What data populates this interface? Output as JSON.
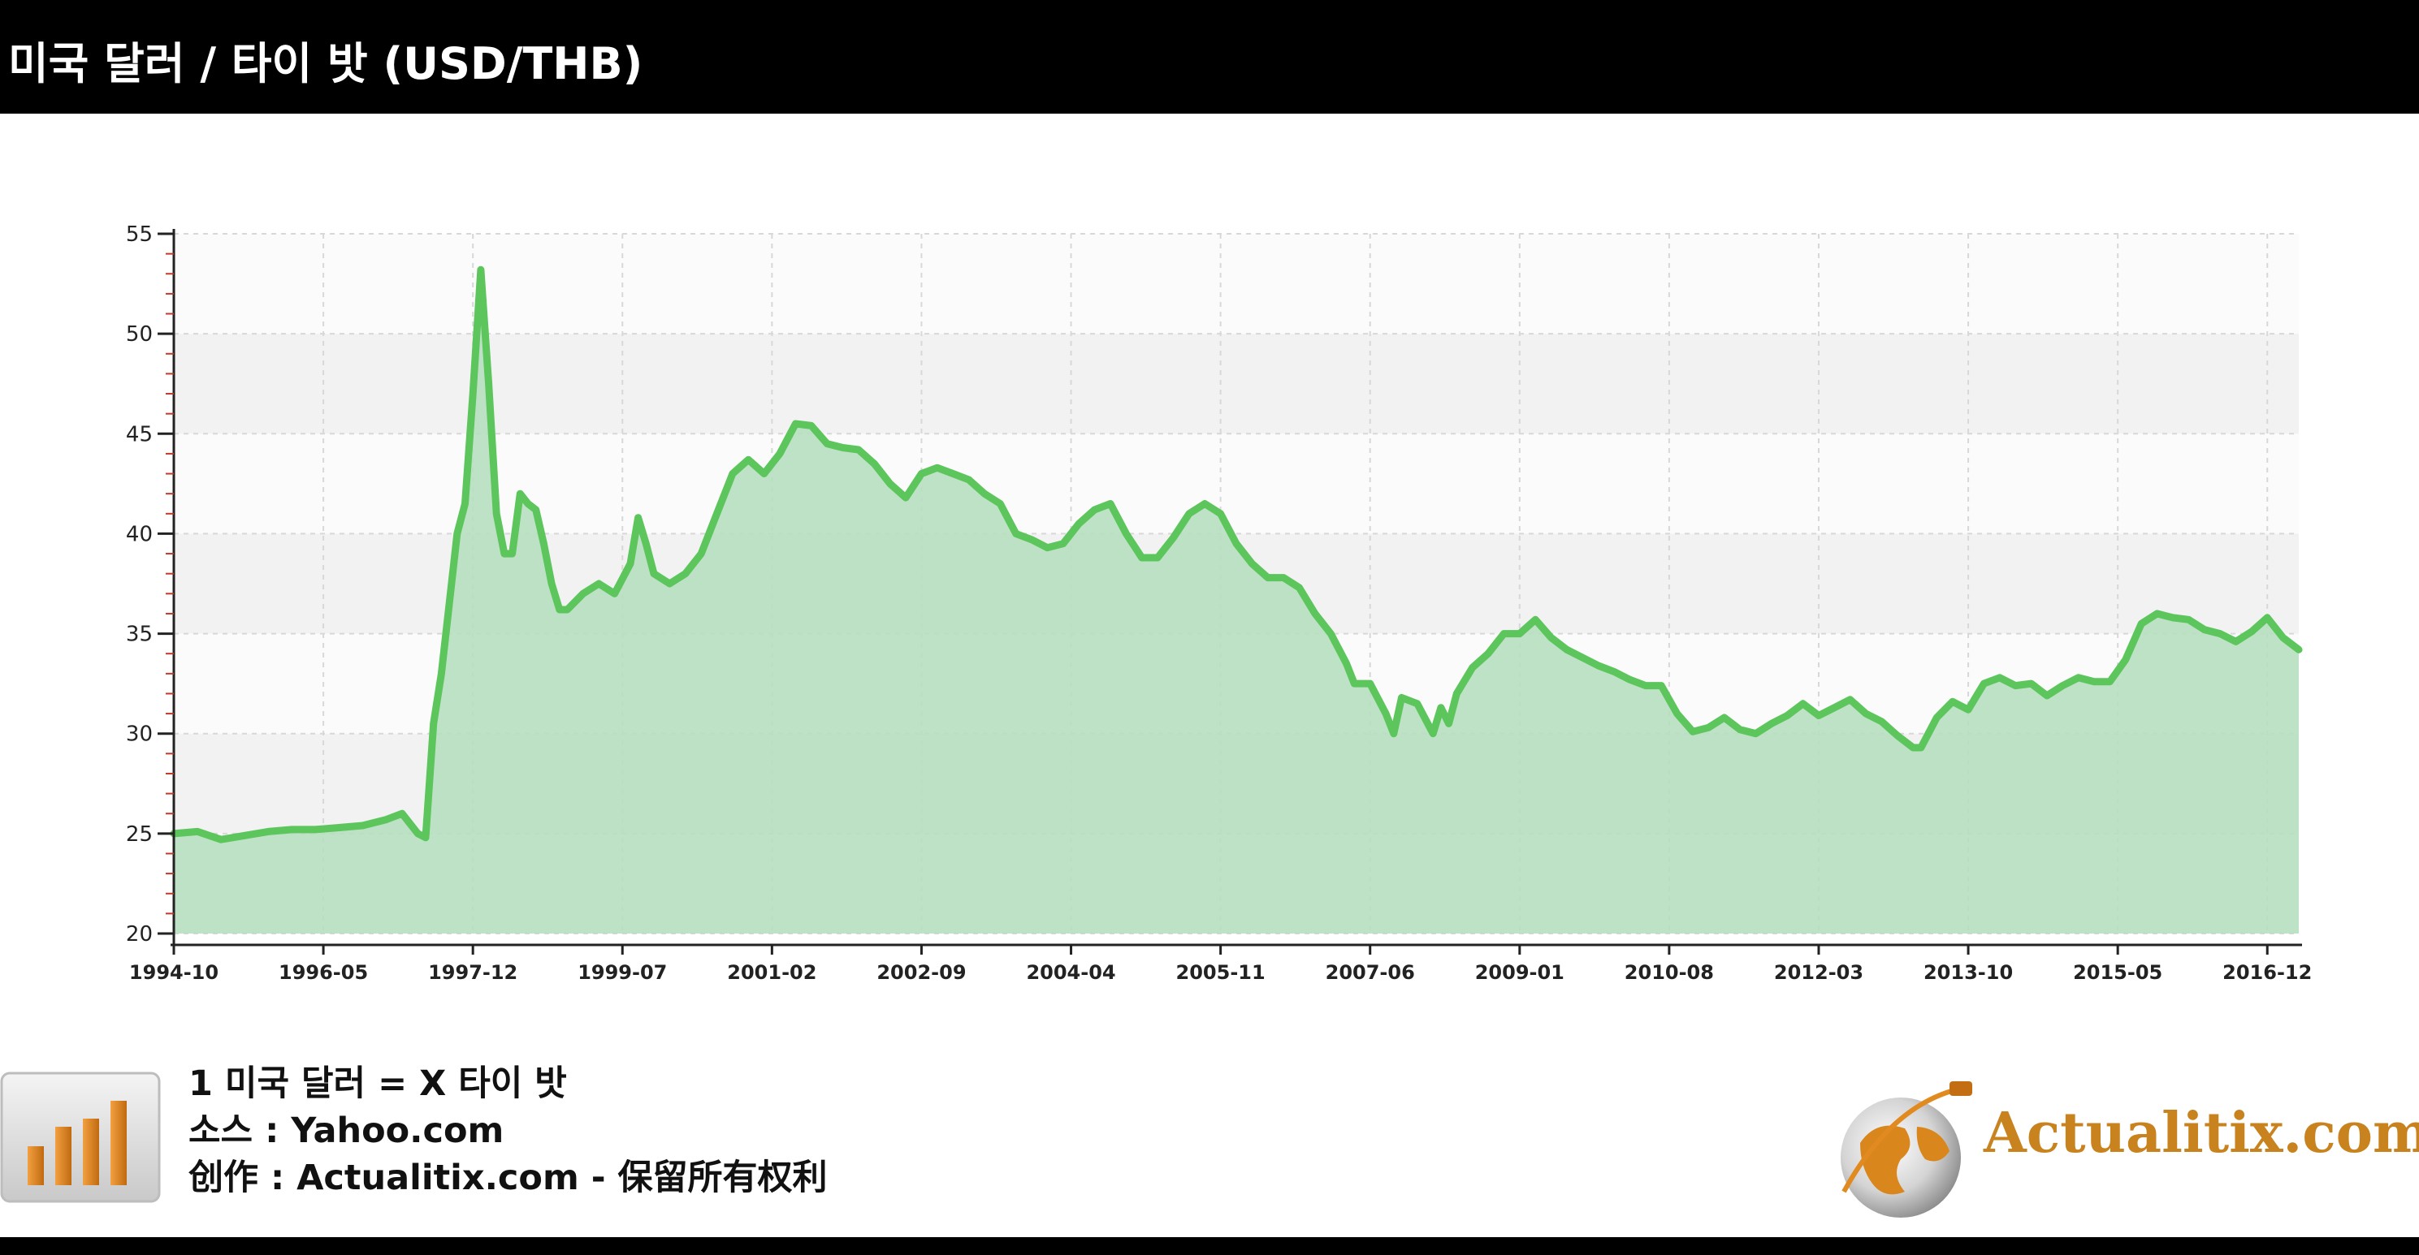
{
  "header": {
    "title": "미국 달러 / 타이 밧 (USD/THB)"
  },
  "footer": {
    "line1": "1 미국 달러 = X 타이 밧",
    "line2": "소스 : Yahoo.com",
    "line3": "创作 : Actualitix.com - 保留所有权利",
    "logo_text": "Actualitix.com",
    "chart_icon": "bar-chart-icon",
    "logo_icon": "globe-icon"
  },
  "colors": {
    "line": "#5cc55c",
    "fill": "#b7dfbf",
    "header_bg": "#000000",
    "logo": "#c8821e"
  },
  "chart_data": {
    "type": "area",
    "title": "미국 달러 / 타이 밧 (USD/THB)",
    "xlabel": "",
    "ylabel": "",
    "ylim": [
      20,
      55
    ],
    "yticks": [
      20,
      25,
      30,
      35,
      40,
      45,
      50,
      55
    ],
    "xticks": [
      "1994-10",
      "1996-05",
      "1997-12",
      "1999-07",
      "2001-02",
      "2002-09",
      "2004-04",
      "2005-11",
      "2007-06",
      "2009-01",
      "2010-08",
      "2012-03",
      "2013-10",
      "2015-05",
      "2016-12"
    ],
    "x_range": [
      "1994-10",
      "2017-04"
    ],
    "grid": true,
    "series": [
      {
        "points": [
          [
            "1994-10",
            25.0
          ],
          [
            "1995-01",
            25.1
          ],
          [
            "1995-04",
            24.7
          ],
          [
            "1995-07",
            24.9
          ],
          [
            "1995-10",
            25.1
          ],
          [
            "1996-01",
            25.2
          ],
          [
            "1996-04",
            25.2
          ],
          [
            "1996-07",
            25.3
          ],
          [
            "1996-10",
            25.4
          ],
          [
            "1997-01",
            25.7
          ],
          [
            "1997-03",
            26.0
          ],
          [
            "1997-05",
            25.0
          ],
          [
            "1997-06",
            24.8
          ],
          [
            "1997-07",
            30.5
          ],
          [
            "1997-08",
            33.0
          ],
          [
            "1997-09",
            36.5
          ],
          [
            "1997-10",
            40.0
          ],
          [
            "1997-11",
            41.5
          ],
          [
            "1997-12",
            47.0
          ],
          [
            "1998-01",
            53.2
          ],
          [
            "1998-02",
            47.5
          ],
          [
            "1998-03",
            41.0
          ],
          [
            "1998-04",
            39.0
          ],
          [
            "1998-05",
            39.0
          ],
          [
            "1998-06",
            42.0
          ],
          [
            "1998-07",
            41.5
          ],
          [
            "1998-08",
            41.2
          ],
          [
            "1998-09",
            39.5
          ],
          [
            "1998-10",
            37.5
          ],
          [
            "1998-11",
            36.2
          ],
          [
            "1998-12",
            36.2
          ],
          [
            "1999-02",
            37.0
          ],
          [
            "1999-04",
            37.5
          ],
          [
            "1999-06",
            37.0
          ],
          [
            "1999-08",
            38.5
          ],
          [
            "1999-09",
            40.8
          ],
          [
            "1999-10",
            39.5
          ],
          [
            "1999-11",
            38.0
          ],
          [
            "2000-01",
            37.5
          ],
          [
            "2000-03",
            38.0
          ],
          [
            "2000-05",
            39.0
          ],
          [
            "2000-07",
            41.0
          ],
          [
            "2000-09",
            43.0
          ],
          [
            "2000-11",
            43.7
          ],
          [
            "2001-01",
            43.0
          ],
          [
            "2001-03",
            44.0
          ],
          [
            "2001-05",
            45.5
          ],
          [
            "2001-07",
            45.4
          ],
          [
            "2001-09",
            44.5
          ],
          [
            "2001-11",
            44.3
          ],
          [
            "2002-01",
            44.2
          ],
          [
            "2002-03",
            43.5
          ],
          [
            "2002-05",
            42.5
          ],
          [
            "2002-07",
            41.8
          ],
          [
            "2002-09",
            43.0
          ],
          [
            "2002-11",
            43.3
          ],
          [
            "2003-01",
            43.0
          ],
          [
            "2003-03",
            42.7
          ],
          [
            "2003-05",
            42.0
          ],
          [
            "2003-07",
            41.5
          ],
          [
            "2003-09",
            40.0
          ],
          [
            "2003-11",
            39.7
          ],
          [
            "2004-01",
            39.3
          ],
          [
            "2004-03",
            39.5
          ],
          [
            "2004-05",
            40.5
          ],
          [
            "2004-07",
            41.2
          ],
          [
            "2004-09",
            41.5
          ],
          [
            "2004-11",
            40.0
          ],
          [
            "2005-01",
            38.8
          ],
          [
            "2005-03",
            38.8
          ],
          [
            "2005-05",
            39.8
          ],
          [
            "2005-07",
            41.0
          ],
          [
            "2005-09",
            41.5
          ],
          [
            "2005-11",
            41.0
          ],
          [
            "2006-01",
            39.5
          ],
          [
            "2006-03",
            38.5
          ],
          [
            "2006-05",
            37.8
          ],
          [
            "2006-07",
            37.8
          ],
          [
            "2006-09",
            37.3
          ],
          [
            "2006-11",
            36.0
          ],
          [
            "2007-01",
            35.0
          ],
          [
            "2007-03",
            33.5
          ],
          [
            "2007-04",
            32.5
          ],
          [
            "2007-06",
            32.5
          ],
          [
            "2007-08",
            31.0
          ],
          [
            "2007-09",
            30.0
          ],
          [
            "2007-10",
            31.8
          ],
          [
            "2007-12",
            31.5
          ],
          [
            "2008-02",
            30.0
          ],
          [
            "2008-03",
            31.3
          ],
          [
            "2008-04",
            30.5
          ],
          [
            "2008-05",
            32.0
          ],
          [
            "2008-07",
            33.3
          ],
          [
            "2008-09",
            34.0
          ],
          [
            "2008-11",
            35.0
          ],
          [
            "2009-01",
            35.0
          ],
          [
            "2009-03",
            35.7
          ],
          [
            "2009-05",
            34.8
          ],
          [
            "2009-07",
            34.2
          ],
          [
            "2009-09",
            33.8
          ],
          [
            "2009-11",
            33.4
          ],
          [
            "2010-01",
            33.1
          ],
          [
            "2010-03",
            32.7
          ],
          [
            "2010-05",
            32.4
          ],
          [
            "2010-07",
            32.4
          ],
          [
            "2010-09",
            31.0
          ],
          [
            "2010-11",
            30.1
          ],
          [
            "2011-01",
            30.3
          ],
          [
            "2011-03",
            30.8
          ],
          [
            "2011-05",
            30.2
          ],
          [
            "2011-07",
            30.0
          ],
          [
            "2011-09",
            30.5
          ],
          [
            "2011-11",
            30.9
          ],
          [
            "2012-01",
            31.5
          ],
          [
            "2012-03",
            30.9
          ],
          [
            "2012-05",
            31.3
          ],
          [
            "2012-07",
            31.7
          ],
          [
            "2012-09",
            31.0
          ],
          [
            "2012-11",
            30.6
          ],
          [
            "2013-01",
            29.9
          ],
          [
            "2013-03",
            29.3
          ],
          [
            "2013-04",
            29.3
          ],
          [
            "2013-06",
            30.8
          ],
          [
            "2013-08",
            31.6
          ],
          [
            "2013-10",
            31.2
          ],
          [
            "2013-12",
            32.5
          ],
          [
            "2014-02",
            32.8
          ],
          [
            "2014-04",
            32.4
          ],
          [
            "2014-06",
            32.5
          ],
          [
            "2014-08",
            31.9
          ],
          [
            "2014-10",
            32.4
          ],
          [
            "2014-12",
            32.8
          ],
          [
            "2015-02",
            32.6
          ],
          [
            "2015-04",
            32.6
          ],
          [
            "2015-06",
            33.7
          ],
          [
            "2015-08",
            35.5
          ],
          [
            "2015-10",
            36.0
          ],
          [
            "2015-12",
            35.8
          ],
          [
            "2016-02",
            35.7
          ],
          [
            "2016-04",
            35.2
          ],
          [
            "2016-06",
            35.0
          ],
          [
            "2016-08",
            34.6
          ],
          [
            "2016-10",
            35.1
          ],
          [
            "2016-12",
            35.8
          ],
          [
            "2017-02",
            34.8
          ],
          [
            "2017-04",
            34.2
          ]
        ]
      }
    ]
  }
}
